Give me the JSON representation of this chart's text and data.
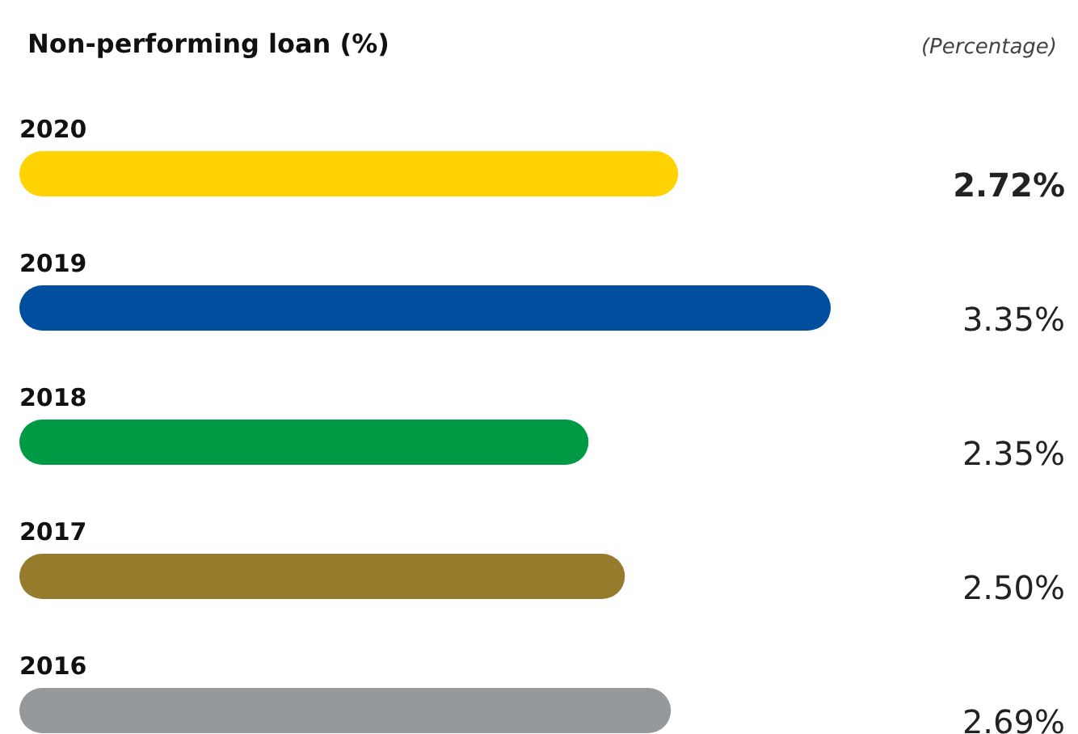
{
  "chart_data": {
    "type": "bar",
    "orientation": "horizontal",
    "title": "Non-performing loan (%)",
    "annotations": [
      "(Percentage)"
    ],
    "categories": [
      "2020",
      "2019",
      "2018",
      "2017",
      "2016"
    ],
    "values": [
      2.72,
      3.35,
      2.35,
      2.5,
      2.69
    ],
    "colors": [
      "#ffd200",
      "#004f9f",
      "#009a44",
      "#957b2b",
      "#96999c"
    ],
    "value_labels": [
      "2.72%",
      "3.35%",
      "2.35%",
      "2.50%",
      "2.69%"
    ]
  }
}
